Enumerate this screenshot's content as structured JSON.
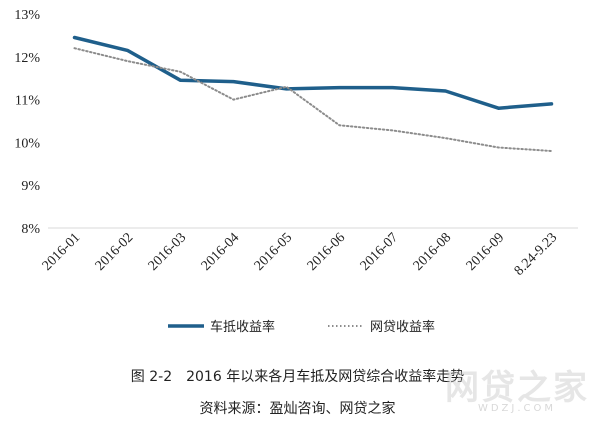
{
  "chart_data": {
    "type": "line",
    "categories": [
      "2016-01",
      "2016-02",
      "2016-03",
      "2016-04",
      "2016-05",
      "2016-06",
      "2016-07",
      "2016-08",
      "2016-09",
      "8.24-9.23"
    ],
    "series": [
      {
        "name": "车抵收益率",
        "color": "#1f5f8b",
        "style": "solid",
        "values": [
          12.45,
          12.15,
          11.45,
          11.42,
          11.25,
          11.28,
          11.28,
          11.2,
          10.8,
          10.9
        ]
      },
      {
        "name": "网贷收益率",
        "color": "#8c8c8c",
        "style": "dotted",
        "values": [
          12.2,
          11.9,
          11.65,
          11.0,
          11.3,
          10.4,
          10.28,
          10.1,
          9.88,
          9.8
        ]
      }
    ],
    "ylim": [
      8,
      13
    ],
    "yticks": [
      "8%",
      "9%",
      "10%",
      "11%",
      "12%",
      "13%"
    ],
    "grid": false,
    "legend_position": "bottom"
  },
  "caption": {
    "title": "图 2-2　2016 年以来各月车抵及网贷综合收益率走势",
    "source": "资料来源：盈灿咨询、网贷之家"
  },
  "watermark": {
    "text": "网贷之家",
    "sub": "WDZJ.COM"
  }
}
